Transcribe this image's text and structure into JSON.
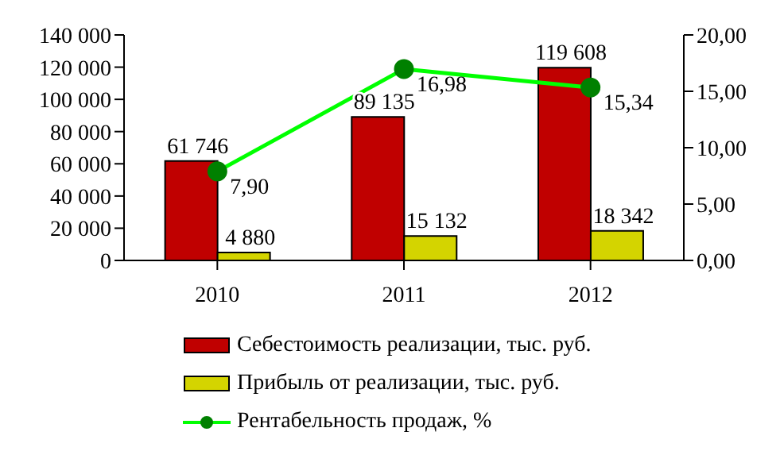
{
  "chart_data": {
    "type": "bar",
    "categories": [
      "2010",
      "2011",
      "2012"
    ],
    "series": [
      {
        "name": "Себестоимость реализации, тыс. руб.",
        "color": "#c00000",
        "values": [
          61746,
          89135,
          119608
        ],
        "value_labels": [
          "61 746",
          "89 135",
          "119 608"
        ]
      },
      {
        "name": "Прибыль от реализации, тыс. руб.",
        "color": "#d4d400",
        "values": [
          4880,
          15132,
          18342
        ],
        "value_labels": [
          "4 880",
          "15 132",
          "18 342"
        ]
      },
      {
        "name": "Рентабельность продаж, %",
        "type": "line",
        "axis": "y2",
        "color": "#00ff00",
        "marker": "circle",
        "values": [
          7.9,
          16.98,
          15.34
        ],
        "value_labels": [
          "7,90",
          "16,98",
          "15,34"
        ]
      }
    ],
    "ylim": [
      0,
      140000
    ],
    "yticks": [
      {
        "value": 0,
        "label": "0"
      },
      {
        "value": 20000,
        "label": "20 000"
      },
      {
        "value": 40000,
        "label": "40 000"
      },
      {
        "value": 60000,
        "label": "60 000"
      },
      {
        "value": 80000,
        "label": "80 000"
      },
      {
        "value": 100000,
        "label": "100 000"
      },
      {
        "value": 120000,
        "label": "120 000"
      },
      {
        "value": 140000,
        "label": "140 000"
      }
    ],
    "y2lim": [
      0,
      20
    ],
    "y2ticks": [
      {
        "value": 0,
        "label": "0,00"
      },
      {
        "value": 5,
        "label": "5,00"
      },
      {
        "value": 10,
        "label": "10,00"
      },
      {
        "value": 15,
        "label": "15,00"
      },
      {
        "value": 20,
        "label": "20,00"
      }
    ],
    "legend": "bottom",
    "grid": false
  }
}
